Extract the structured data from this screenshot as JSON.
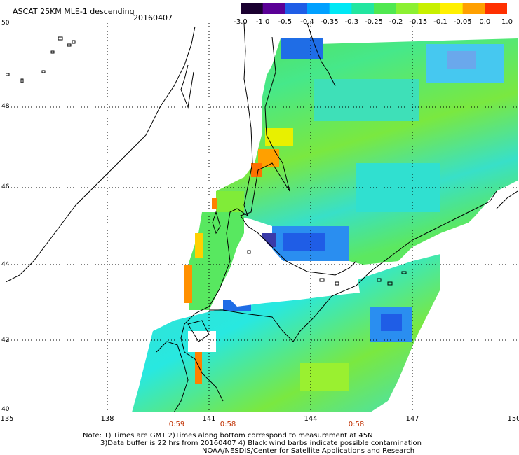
{
  "header": {
    "title": "ASCAT 25KM MLE-1 descending",
    "date": "20160407"
  },
  "colorbar": {
    "labels": [
      "-3.0",
      "-1.0",
      "-0.5",
      "-0.4",
      "-0.35",
      "-0.3",
      "-0.25",
      "-0.2",
      "-0.15",
      "-0.1",
      "-0.05",
      "0.0",
      "1.0"
    ],
    "colors": [
      "#1a0030",
      "#5a0096",
      "#1f5de6",
      "#00a0ff",
      "#00e8f5",
      "#22e6a0",
      "#50e850",
      "#8cf032",
      "#c8f000",
      "#fff000",
      "#ffa000",
      "#ff3000"
    ]
  },
  "axes": {
    "lat_labels": [
      "50",
      "48",
      "46",
      "44",
      "42",
      "40"
    ],
    "lon_labels": [
      "135",
      "138",
      "141",
      "144",
      "147",
      "150"
    ]
  },
  "times": [
    "0:59",
    "0:58",
    "0:58"
  ],
  "notes": {
    "line1": "Note: 1) Times are GMT 2)Times along bottom correspond to measurement at 45N",
    "line2": "3)Data buffer is 22 hrs from 20160407 4) Black wind barbs indicate possible contamination",
    "line3": "NOAA/NESDIS/Center for Satellite Applications and Research"
  }
}
